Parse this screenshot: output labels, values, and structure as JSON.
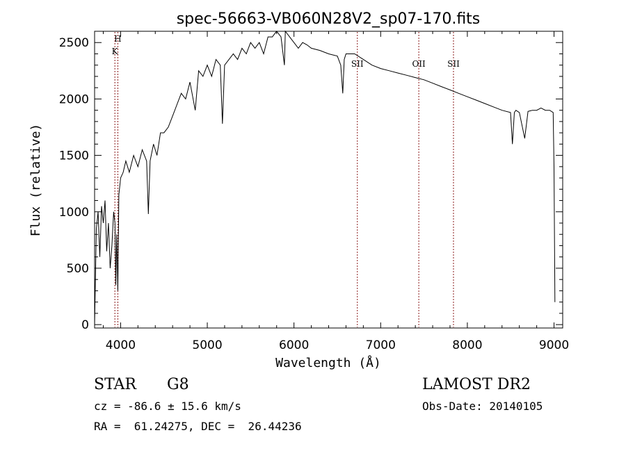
{
  "chart_data": {
    "type": "line",
    "title": "spec-56663-VB060N28V2_sp07-170.fits",
    "xlabel": "Wavelength (Å)",
    "ylabel": "Flux (relative)",
    "xlim": [
      3700,
      9100
    ],
    "ylim": [
      -30,
      2600
    ],
    "x_ticks": [
      4000,
      5000,
      6000,
      7000,
      8000,
      9000
    ],
    "y_ticks": [
      0,
      500,
      1000,
      1500,
      2000,
      2500
    ],
    "x_tick_labels": [
      "4000",
      "5000",
      "6000",
      "7000",
      "8000",
      "9000"
    ],
    "y_tick_labels": [
      "0",
      "500",
      "1000",
      "1500",
      "2000",
      "2500"
    ],
    "grid": false,
    "line_color": "#000000",
    "marker_color": "#8b1a1a",
    "series": [
      {
        "x": [
          3700,
          3720,
          3740,
          3760,
          3780,
          3800,
          3820,
          3840,
          3860,
          3880,
          3900,
          3920,
          3935,
          3945,
          3955,
          3968,
          3980,
          4000,
          4030,
          4060,
          4100,
          4150,
          4200,
          4250,
          4300,
          4320,
          4340,
          4380,
          4420,
          4460,
          4500,
          4550,
          4600,
          4650,
          4700,
          4750,
          4800,
          4861,
          4900,
          4950,
          5000,
          5050,
          5100,
          5150,
          5175,
          5200,
          5250,
          5300,
          5350,
          5400,
          5450,
          5500,
          5550,
          5600,
          5650,
          5700,
          5750,
          5800,
          5850,
          5890,
          5900,
          5950,
          6000,
          6050,
          6100,
          6150,
          6200,
          6300,
          6400,
          6500,
          6540,
          6563,
          6580,
          6600,
          6700,
          6800,
          6900,
          7000,
          7100,
          7200,
          7300,
          7400,
          7500,
          7600,
          7700,
          7800,
          7900,
          8000,
          8100,
          8200,
          8300,
          8400,
          8498,
          8520,
          8542,
          8560,
          8600,
          8662,
          8700,
          8750,
          8800,
          8850,
          8900,
          8950,
          8990,
          9000,
          9010
        ],
        "y": [
          0,
          850,
          1000,
          600,
          1050,
          900,
          1100,
          650,
          900,
          500,
          700,
          1000,
          900,
          350,
          800,
          300,
          1150,
          1300,
          1350,
          1450,
          1350,
          1500,
          1400,
          1550,
          1450,
          980,
          1450,
          1600,
          1500,
          1700,
          1700,
          1750,
          1850,
          1950,
          2050,
          2000,
          2150,
          1900,
          2250,
          2200,
          2300,
          2200,
          2350,
          2300,
          1780,
          2300,
          2350,
          2400,
          2350,
          2450,
          2400,
          2500,
          2450,
          2500,
          2400,
          2550,
          2550,
          2600,
          2550,
          2300,
          2600,
          2550,
          2500,
          2450,
          2500,
          2480,
          2450,
          2430,
          2400,
          2380,
          2300,
          2050,
          2350,
          2400,
          2400,
          2350,
          2300,
          2270,
          2250,
          2230,
          2210,
          2190,
          2170,
          2140,
          2110,
          2080,
          2050,
          2020,
          1990,
          1960,
          1930,
          1900,
          1880,
          1600,
          1880,
          1900,
          1880,
          1650,
          1890,
          1900,
          1900,
          1920,
          1900,
          1900,
          1880,
          1400,
          200
        ]
      }
    ],
    "line_markers": [
      {
        "label": "H",
        "x": 3968
      },
      {
        "label": "K",
        "x": 3934
      },
      {
        "label": "SII",
        "x": 6731
      },
      {
        "label": "OII",
        "x": 7440
      },
      {
        "label": "SII",
        "x": 7840
      }
    ],
    "annotations": {
      "object_class": "STAR",
      "subclass": "G8",
      "cz": "cz = -86.6 ± 15.6 km/s",
      "radec": "RA =  61.24275, DEC =  26.44236",
      "survey": "LAMOST DR2",
      "obs_date": "Obs-Date: 20140105"
    }
  }
}
